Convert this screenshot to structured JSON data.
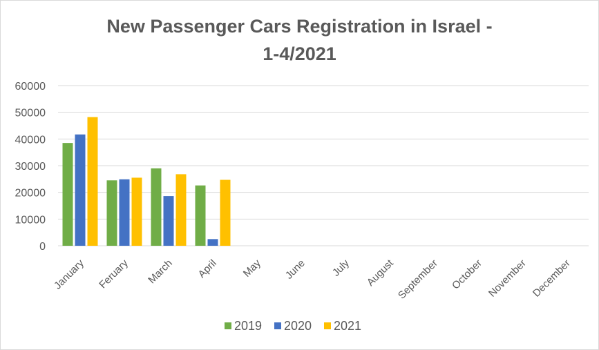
{
  "chart_data": {
    "type": "bar",
    "title_lines": [
      "New Passenger Cars Registration in Israel -",
      "1-4/2021"
    ],
    "categories": [
      "January",
      "Feruary",
      "March",
      "April",
      "May",
      "June",
      "July",
      "August",
      "September",
      "October",
      "November",
      "December"
    ],
    "series": [
      {
        "name": "2019",
        "color": "#70ad47",
        "values": [
          38500,
          24500,
          29000,
          22600,
          null,
          null,
          null,
          null,
          null,
          null,
          null,
          null
        ]
      },
      {
        "name": "2020",
        "color": "#4472c4",
        "values": [
          41700,
          24900,
          18600,
          2500,
          null,
          null,
          null,
          null,
          null,
          null,
          null,
          null
        ]
      },
      {
        "name": "2021",
        "color": "#ffc000",
        "values": [
          48200,
          25500,
          26800,
          24700,
          null,
          null,
          null,
          null,
          null,
          null,
          null,
          null
        ]
      }
    ],
    "ylim": [
      0,
      60000
    ],
    "yticks": [
      0,
      10000,
      20000,
      30000,
      40000,
      50000,
      60000
    ],
    "grid": true,
    "legend": "bottom"
  }
}
